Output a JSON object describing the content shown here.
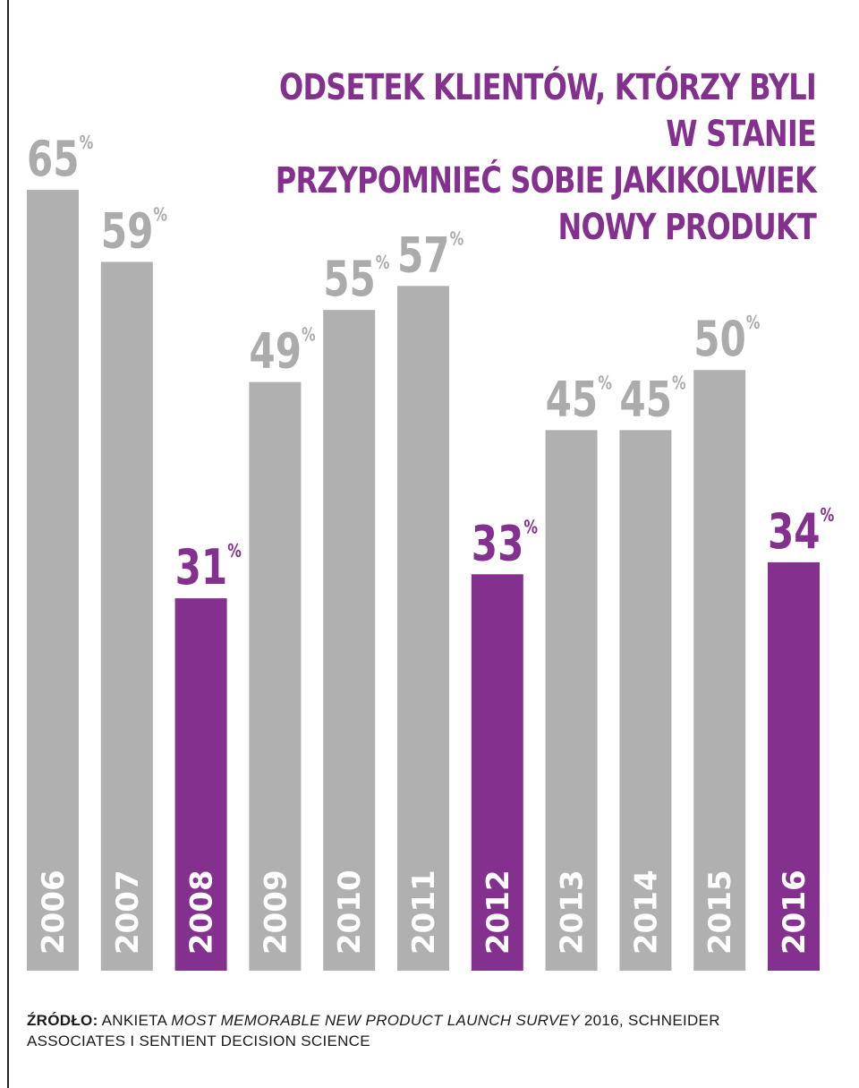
{
  "colors": {
    "gray_bar": "#b0b0b0",
    "gray_label": "#ababab",
    "highlight": "#84308e"
  },
  "title_lines": [
    "ODSETEK KLIENTÓW, KTÓRZY BYLI W STANIE",
    "PRZYPOMNIEĆ SOBIE JAKIKOLWIEK",
    "NOWY PRODUKT"
  ],
  "source": {
    "label": "ŹRÓDŁO:",
    "text_before": " ANKIETA ",
    "survey_name": "MOST MEMORABLE NEW PRODUCT LAUNCH SURVEY",
    "text_after": " 2016, SCHNEIDER ASSOCIATES I SENTIENT DECISION SCIENCE"
  },
  "chart_data": {
    "type": "bar",
    "title": "ODSETEK KLIENTÓW, KTÓRZY BYLI W STANIE PRZYPOMNIEĆ SOBIE JAKIKOLWIEK NOWY PRODUKT",
    "categories": [
      "2006",
      "2007",
      "2008",
      "2009",
      "2010",
      "2011",
      "2012",
      "2013",
      "2014",
      "2015",
      "2016"
    ],
    "values": [
      65,
      59,
      31,
      49,
      55,
      57,
      33,
      45,
      45,
      50,
      34
    ],
    "unit": "%",
    "highlighted": [
      "2008",
      "2012",
      "2016"
    ],
    "ylim": [
      0,
      65
    ],
    "grid": false,
    "legend": "none"
  }
}
